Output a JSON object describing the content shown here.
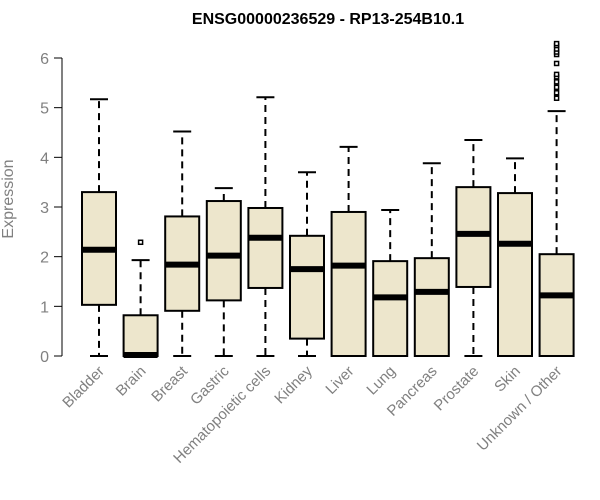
{
  "chart_data": {
    "type": "box",
    "title": "ENSG00000236529 - RP13-254B10.1",
    "ylabel": "Expression",
    "xlabel": "",
    "ylim": [
      0,
      6
    ],
    "yticks": [
      0,
      1,
      2,
      3,
      4,
      5,
      6
    ],
    "box_fill": "#ede6cc",
    "categories": [
      "Bladder",
      "Brain",
      "Breast",
      "Gastric",
      "Hematopoietic cells",
      "Kidney",
      "Liver",
      "Lung",
      "Pancreas",
      "Prostate",
      "Skin",
      "Unknown / Other"
    ],
    "boxes": [
      {
        "whisker_low": 0,
        "q1": 1.03,
        "median": 2.14,
        "q3": 3.3,
        "whisker_high": 5.17,
        "outliers": []
      },
      {
        "whisker_low": 0,
        "q1": 0,
        "median": 0.02,
        "q3": 0.82,
        "whisker_high": 1.93,
        "outliers": [
          2.29
        ]
      },
      {
        "whisker_low": 0,
        "q1": 0.91,
        "median": 1.84,
        "q3": 2.81,
        "whisker_high": 4.52,
        "outliers": []
      },
      {
        "whisker_low": 0,
        "q1": 1.12,
        "median": 2.02,
        "q3": 3.12,
        "whisker_high": 3.38,
        "outliers": []
      },
      {
        "whisker_low": 0,
        "q1": 1.37,
        "median": 2.38,
        "q3": 2.98,
        "whisker_high": 5.21,
        "outliers": []
      },
      {
        "whisker_low": 0,
        "q1": 0.35,
        "median": 1.75,
        "q3": 2.42,
        "whisker_high": 3.7,
        "outliers": []
      },
      {
        "whisker_low": 0,
        "q1": 0,
        "median": 1.82,
        "q3": 2.9,
        "whisker_high": 4.21,
        "outliers": []
      },
      {
        "whisker_low": 0,
        "q1": 0,
        "median": 1.18,
        "q3": 1.91,
        "whisker_high": 2.94,
        "outliers": []
      },
      {
        "whisker_low": 0,
        "q1": 0,
        "median": 1.29,
        "q3": 1.97,
        "whisker_high": 3.88,
        "outliers": []
      },
      {
        "whisker_low": 0,
        "q1": 1.39,
        "median": 2.46,
        "q3": 3.4,
        "whisker_high": 4.35,
        "outliers": []
      },
      {
        "whisker_low": 0,
        "q1": 0,
        "median": 2.26,
        "q3": 3.28,
        "whisker_high": 3.98,
        "outliers": []
      },
      {
        "whisker_low": 0,
        "q1": 0,
        "median": 1.22,
        "q3": 2.05,
        "whisker_high": 4.93,
        "outliers": [
          5.19,
          5.3,
          5.41,
          5.52,
          5.62,
          5.67,
          5.89,
          6.07,
          6.12,
          6.18,
          6.25,
          6.29
        ]
      }
    ]
  }
}
